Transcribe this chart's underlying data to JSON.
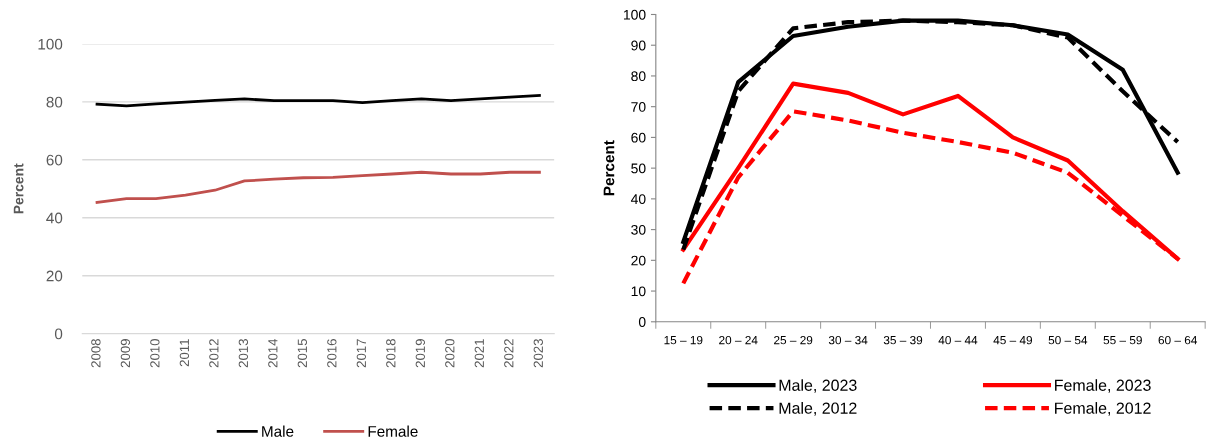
{
  "chart_data": [
    {
      "type": "line",
      "ylabel": "Percent",
      "categories": [
        "2008",
        "2009",
        "2010",
        "2011",
        "2012",
        "2013",
        "2014",
        "2015",
        "2016",
        "2017",
        "2018",
        "2019",
        "2020",
        "2021",
        "2022",
        "2023"
      ],
      "ylim": [
        0,
        100
      ],
      "yticks": [
        0,
        20,
        40,
        60,
        80,
        100
      ],
      "grid": "y",
      "legend": "bottom",
      "series": [
        {
          "name": "Male",
          "color": "#000000",
          "values": [
            79.2,
            78.6,
            79.3,
            79.9,
            80.5,
            81.0,
            80.4,
            80.4,
            80.4,
            79.7,
            80.4,
            81.0,
            80.4,
            81.0,
            81.6,
            82.2
          ]
        },
        {
          "name": "Female",
          "color": "#c0504d",
          "values": [
            45.3,
            46.6,
            46.6,
            47.8,
            49.5,
            52.7,
            53.3,
            53.8,
            53.9,
            54.5,
            55.1,
            55.7,
            55.1,
            55.1,
            55.7,
            55.7
          ]
        }
      ]
    },
    {
      "type": "line",
      "ylabel": "Percent",
      "categories": [
        "15 – 19",
        "20 – 24",
        "25 – 29",
        "30 – 34",
        "35 – 39",
        "40 – 44",
        "45 – 49",
        "50 – 54",
        "55 – 59",
        "60 – 64"
      ],
      "ylim": [
        0,
        100
      ],
      "yticks": [
        0,
        10,
        20,
        30,
        40,
        50,
        60,
        70,
        80,
        90,
        100
      ],
      "legend": "bottom",
      "series": [
        {
          "name": "Male, 2023",
          "color": "#000000",
          "line_style": "solid",
          "values": [
            26,
            78,
            93,
            96,
            98,
            98,
            96.5,
            93.5,
            82,
            48.5
          ]
        },
        {
          "name": "Female, 2023",
          "color": "#ff0000",
          "line_style": "solid",
          "values": [
            23.5,
            50,
            77.5,
            74.5,
            67.5,
            73.5,
            60,
            52.5,
            36,
            20.5
          ]
        },
        {
          "name": "Male, 2012",
          "color": "#000000",
          "line_style": "dashed",
          "values": [
            23.5,
            75,
            95.5,
            97.5,
            98,
            97.5,
            96.5,
            92.5,
            75,
            58.5
          ]
        },
        {
          "name": "Female, 2012",
          "color": "#ff0000",
          "line_style": "dashed",
          "values": [
            12.5,
            47,
            68.5,
            65.5,
            61.5,
            58.5,
            55,
            48.5,
            34.5,
            20.5
          ]
        }
      ]
    }
  ]
}
